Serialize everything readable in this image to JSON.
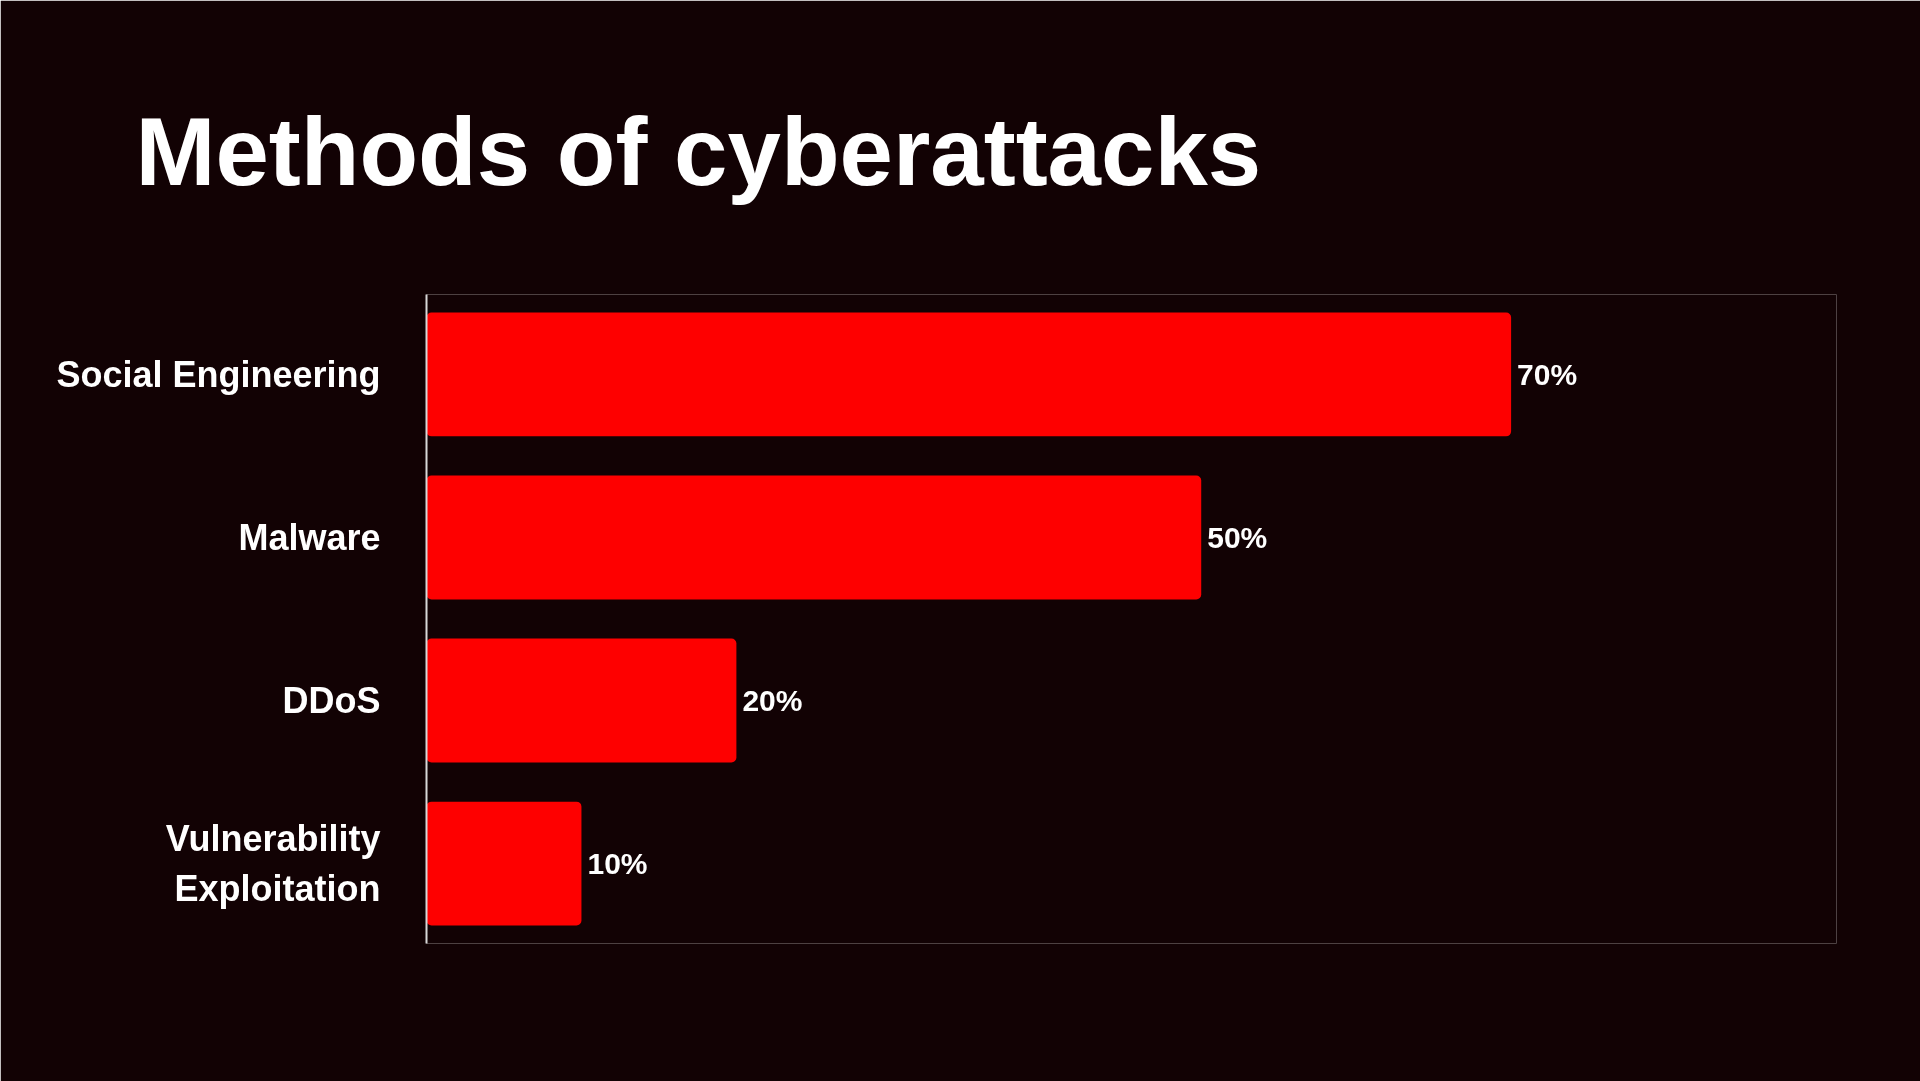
{
  "chart_data": {
    "type": "bar",
    "orientation": "horizontal",
    "title": "Methods of cyberattacks",
    "categories": [
      "Social Engineering",
      "Malware",
      "DDoS",
      "Vulnerability Exploitation"
    ],
    "values": [
      70,
      50,
      20,
      10
    ],
    "color": "#fe0000",
    "value_labels": [
      "70%",
      "50%",
      "20%",
      "10%"
    ]
  }
}
